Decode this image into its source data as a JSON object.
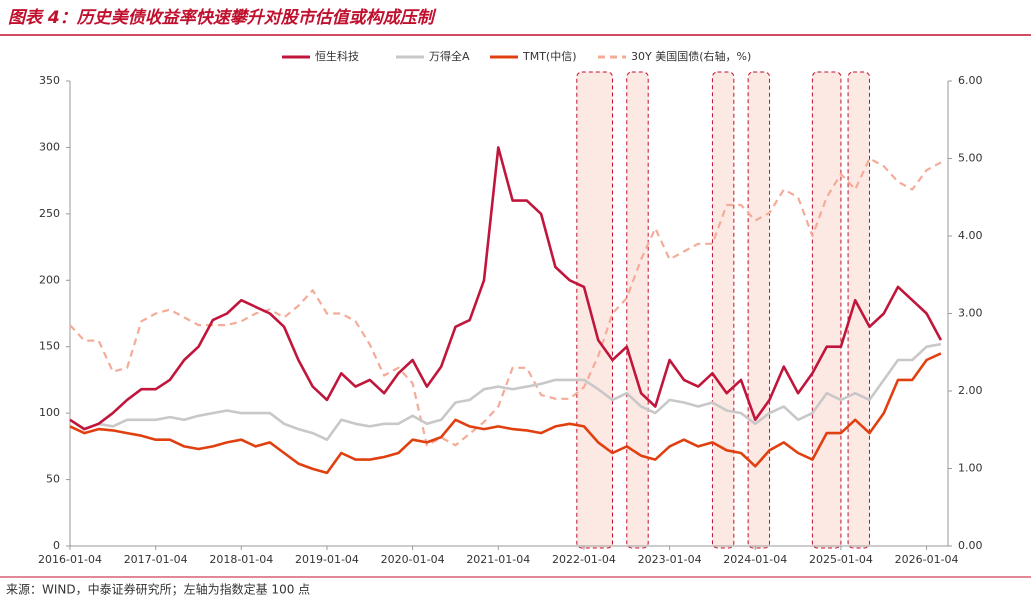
{
  "chart_data": {
    "type": "line",
    "title": "图表 4：历史美债收益率快速攀升对股市估值或构成压制",
    "source": "来源：WIND，中泰证券研究所；左轴为指数定基 100 点",
    "x": [
      "2016-01",
      "2016-03",
      "2016-05",
      "2016-07",
      "2016-09",
      "2016-11",
      "2017-01",
      "2017-03",
      "2017-05",
      "2017-07",
      "2017-09",
      "2017-11",
      "2018-01",
      "2018-03",
      "2018-05",
      "2018-07",
      "2018-09",
      "2018-11",
      "2019-01",
      "2019-03",
      "2019-05",
      "2019-07",
      "2019-09",
      "2019-11",
      "2020-01",
      "2020-03",
      "2020-05",
      "2020-07",
      "2020-09",
      "2020-11",
      "2021-01",
      "2021-03",
      "2021-05",
      "2021-07",
      "2021-09",
      "2021-11",
      "2022-01",
      "2022-03",
      "2022-05",
      "2022-07",
      "2022-09",
      "2022-11",
      "2023-01",
      "2023-03",
      "2023-05",
      "2023-07",
      "2023-09",
      "2023-11",
      "2024-01",
      "2024-03",
      "2024-05",
      "2024-07",
      "2024-09",
      "2024-11",
      "2025-01",
      "2025-03",
      "2025-05",
      "2025-07",
      "2025-09",
      "2025-11",
      "2026-01",
      "2026-03"
    ],
    "series": [
      {
        "name": "恒生科技",
        "color": "#c0163c",
        "width": 2.6,
        "values": [
          95,
          88,
          92,
          100,
          110,
          118,
          118,
          125,
          140,
          150,
          170,
          175,
          185,
          180,
          175,
          165,
          140,
          120,
          110,
          130,
          120,
          125,
          115,
          130,
          140,
          120,
          135,
          165,
          170,
          200,
          300,
          260,
          260,
          250,
          210,
          200,
          195,
          155,
          140,
          150,
          115,
          105,
          140,
          125,
          120,
          130,
          115,
          125,
          95,
          110,
          135,
          115,
          130,
          150,
          150,
          185,
          165,
          175,
          195,
          185,
          175,
          155
        ]
      },
      {
        "name": "万得全A",
        "color": "#c8c8c8",
        "width": 2.6,
        "values": [
          95,
          88,
          92,
          90,
          95,
          95,
          95,
          97,
          95,
          98,
          100,
          102,
          100,
          100,
          100,
          92,
          88,
          85,
          80,
          95,
          92,
          90,
          92,
          92,
          98,
          92,
          95,
          108,
          110,
          118,
          120,
          118,
          120,
          122,
          125,
          125,
          125,
          118,
          110,
          115,
          105,
          100,
          110,
          108,
          105,
          108,
          102,
          100,
          92,
          100,
          105,
          95,
          100,
          115,
          110,
          115,
          110,
          125,
          140,
          140,
          150,
          152
        ]
      },
      {
        "name": "TMT(中信)",
        "color": "#e04010",
        "width": 2.6,
        "values": [
          90,
          85,
          88,
          87,
          85,
          83,
          80,
          80,
          75,
          73,
          75,
          78,
          80,
          75,
          78,
          70,
          62,
          58,
          55,
          70,
          65,
          65,
          67,
          70,
          80,
          78,
          82,
          95,
          90,
          88,
          90,
          88,
          87,
          85,
          90,
          92,
          90,
          78,
          70,
          75,
          68,
          65,
          75,
          80,
          75,
          78,
          72,
          70,
          60,
          72,
          78,
          70,
          65,
          85,
          85,
          95,
          85,
          100,
          125,
          125,
          140,
          145
        ]
      },
      {
        "name": "30Y 美国国债(右轴，%)",
        "color": "#f4ab98",
        "width": 2.2,
        "dash": "7,5",
        "axis": "y2",
        "values": [
          2.85,
          2.65,
          2.65,
          2.25,
          2.3,
          2.9,
          3.0,
          3.05,
          2.95,
          2.85,
          2.85,
          2.85,
          2.9,
          3.0,
          3.05,
          2.95,
          3.1,
          3.3,
          3.0,
          3.0,
          2.9,
          2.6,
          2.2,
          2.3,
          2.1,
          1.3,
          1.4,
          1.3,
          1.45,
          1.6,
          1.8,
          2.3,
          2.3,
          1.95,
          1.9,
          1.9,
          2.05,
          2.45,
          3.0,
          3.2,
          3.7,
          4.1,
          3.7,
          3.8,
          3.9,
          3.9,
          4.4,
          4.4,
          4.2,
          4.3,
          4.6,
          4.5,
          4.0,
          4.5,
          4.8,
          4.6,
          5.0,
          4.9,
          4.7,
          4.6,
          4.85,
          4.95
        ]
      }
    ],
    "shaded_periods": [
      [
        "2021-12",
        "2022-05"
      ],
      [
        "2022-07",
        "2022-10"
      ],
      [
        "2023-07",
        "2023-10"
      ],
      [
        "2023-12",
        "2024-03"
      ],
      [
        "2024-09",
        "2025-01"
      ],
      [
        "2025-02",
        "2025-05"
      ]
    ],
    "shade_color": "#fde9e4",
    "xlim": [
      "2016-01",
      "2026-04"
    ],
    "xticks": [
      {
        "value": "2016-01",
        "label": "2016-01-04"
      },
      {
        "value": "2017-01",
        "label": "2017-01-04"
      },
      {
        "value": "2018-01",
        "label": "2018-01-04"
      },
      {
        "value": "2019-01",
        "label": "2019-01-04"
      },
      {
        "value": "2020-01",
        "label": "2020-01-04"
      },
      {
        "value": "2021-01",
        "label": "2021-01-04"
      },
      {
        "value": "2022-01",
        "label": "2022-01-04"
      },
      {
        "value": "2023-01",
        "label": "2023-01-04"
      },
      {
        "value": "2024-01",
        "label": "2024-01-04"
      },
      {
        "value": "2025-01",
        "label": "2025-01-04"
      },
      {
        "value": "2026-01",
        "label": "2026-01-04"
      }
    ],
    "ylim": [
      0,
      350
    ],
    "yticks": [
      0,
      50,
      100,
      150,
      200,
      250,
      300,
      350
    ],
    "y2lim": [
      0,
      6
    ],
    "y2ticks": [
      {
        "value": 0,
        "label": "0.00"
      },
      {
        "value": 1,
        "label": "1.00"
      },
      {
        "value": 2,
        "label": "2.00"
      },
      {
        "value": 3,
        "label": "3.00"
      },
      {
        "value": 4,
        "label": "4.00"
      },
      {
        "value": 5,
        "label": "5.00"
      },
      {
        "value": 6,
        "label": "6.00"
      }
    ],
    "legend": "top"
  }
}
